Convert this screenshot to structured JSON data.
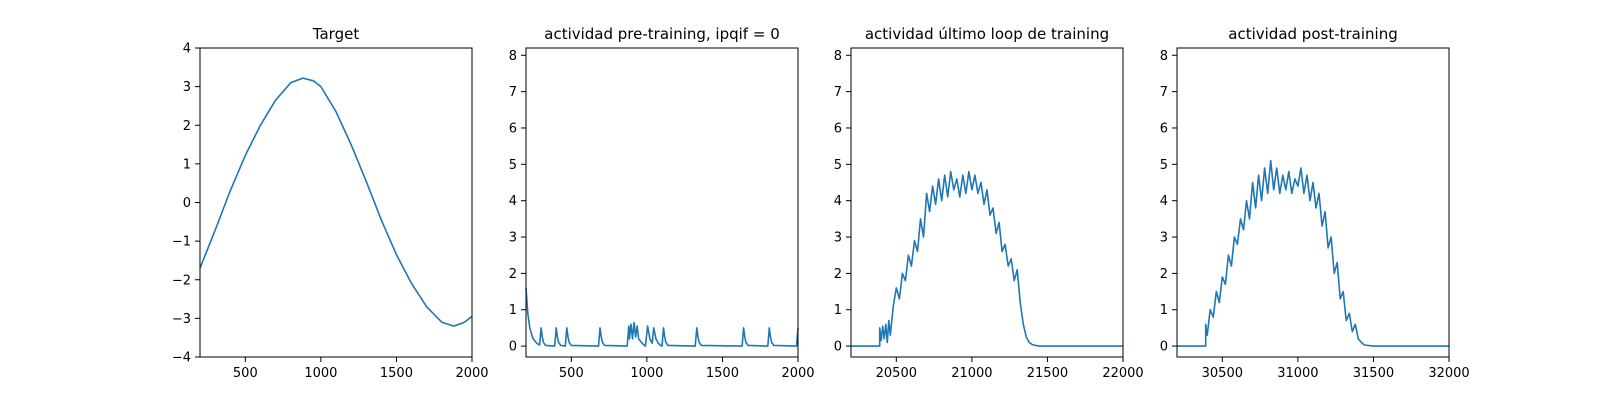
{
  "line_color": "#1f77b4",
  "chart_data": [
    {
      "type": "line",
      "title": "Target",
      "xlim": [
        200,
        2000
      ],
      "ylim": [
        -4,
        4
      ],
      "xticks": [
        500,
        1000,
        1500,
        2000
      ],
      "yticks": [
        -4,
        -3,
        -2,
        -1,
        0,
        1,
        2,
        3,
        4
      ],
      "series": [
        {
          "x": [
            200,
            300,
            400,
            500,
            600,
            700,
            800,
            880,
            950,
            1000,
            1100,
            1200,
            1300,
            1400,
            1500,
            1600,
            1700,
            1800,
            1880,
            1950,
            2000
          ],
          "y": [
            -1.7,
            -0.72,
            0.3,
            1.22,
            2.0,
            2.65,
            3.1,
            3.22,
            3.15,
            3.0,
            2.35,
            1.5,
            0.55,
            -0.45,
            -1.35,
            -2.1,
            -2.7,
            -3.1,
            -3.2,
            -3.1,
            -2.95
          ]
        }
      ]
    },
    {
      "type": "line",
      "title": "actividad pre-training, ipqif = 0",
      "xlim": [
        200,
        2000
      ],
      "ylim": [
        -0.3,
        8.2
      ],
      "xticks": [
        500,
        1000,
        1500,
        2000
      ],
      "yticks": [
        0,
        1,
        2,
        3,
        4,
        5,
        6,
        7,
        8
      ],
      "series": [
        {
          "x": [
            200,
            212,
            225,
            245,
            270,
            290,
            300,
            308,
            316,
            330,
            390,
            400,
            408,
            416,
            430,
            460,
            470,
            478,
            486,
            500,
            680,
            690,
            698,
            706,
            720,
            870,
            880,
            885,
            895,
            905,
            915,
            925,
            935,
            945,
            955,
            965,
            975,
            990,
            1005,
            1020,
            1035,
            1045,
            1060,
            1075,
            1090,
            1100,
            1110,
            1118,
            1126,
            1140,
            1320,
            1330,
            1338,
            1346,
            1360,
            1630,
            1640,
            1648,
            1656,
            1670,
            1800,
            1810,
            1818,
            1826,
            1840,
            1990,
            2000
          ],
          "y": [
            1.6,
            0.9,
            0.5,
            0.22,
            0.08,
            0.03,
            0.5,
            0.25,
            0.1,
            0.02,
            0.0,
            0.5,
            0.25,
            0.1,
            0.02,
            0.0,
            0.5,
            0.25,
            0.1,
            0.02,
            0.0,
            0.5,
            0.25,
            0.1,
            0.02,
            0.0,
            0.55,
            0.2,
            0.6,
            0.2,
            0.65,
            0.25,
            0.55,
            0.2,
            0.15,
            0.1,
            0.05,
            0.0,
            0.55,
            0.2,
            0.08,
            0.5,
            0.2,
            0.08,
            0.02,
            0.0,
            0.5,
            0.25,
            0.1,
            0.02,
            0.0,
            0.5,
            0.25,
            0.1,
            0.02,
            0.0,
            0.5,
            0.25,
            0.1,
            0.02,
            0.0,
            0.5,
            0.25,
            0.1,
            0.02,
            0.0,
            0.5
          ]
        }
      ]
    },
    {
      "type": "line",
      "title": "actividad último loop de training",
      "xlim": [
        20200,
        22000
      ],
      "ylim": [
        -0.3,
        8.2
      ],
      "xticks": [
        20500,
        21000,
        21500,
        22000
      ],
      "yticks": [
        0,
        1,
        2,
        3,
        4,
        5,
        6,
        7,
        8
      ],
      "series": [
        {
          "x": [
            20200,
            20390,
            20390,
            20400,
            20410,
            20420,
            20430,
            20440,
            20450,
            20460,
            20480,
            20500,
            20520,
            20540,
            20560,
            20580,
            20600,
            20620,
            20640,
            20660,
            20680,
            20700,
            20720,
            20740,
            20760,
            20780,
            20800,
            20820,
            20840,
            20860,
            20880,
            20900,
            20920,
            20940,
            20960,
            20980,
            21000,
            21020,
            21040,
            21060,
            21080,
            21100,
            21120,
            21140,
            21160,
            21180,
            21200,
            21220,
            21240,
            21260,
            21280,
            21300,
            21320,
            21340,
            21360,
            21380,
            21400,
            21420,
            21450,
            21500,
            22000
          ],
          "y": [
            0.0,
            0.0,
            0.5,
            0.15,
            0.55,
            0.2,
            0.6,
            0.1,
            0.7,
            0.3,
            1.1,
            1.6,
            1.3,
            2.0,
            1.8,
            2.5,
            2.2,
            2.9,
            2.6,
            3.5,
            3.0,
            4.2,
            3.7,
            4.4,
            3.9,
            4.6,
            4.0,
            4.7,
            4.1,
            4.8,
            4.3,
            4.6,
            4.1,
            4.7,
            4.2,
            4.8,
            4.3,
            4.7,
            4.2,
            4.5,
            3.9,
            4.3,
            3.6,
            3.8,
            3.1,
            3.4,
            2.6,
            2.8,
            2.2,
            2.4,
            1.8,
            2.1,
            1.2,
            0.6,
            0.25,
            0.1,
            0.04,
            0.02,
            0.0,
            0.0,
            0.0
          ]
        }
      ]
    },
    {
      "type": "line",
      "title": "actividad post-training",
      "xlim": [
        30200,
        32000
      ],
      "ylim": [
        -0.3,
        8.2
      ],
      "xticks": [
        30500,
        31000,
        31500,
        32000
      ],
      "yticks": [
        0,
        1,
        2,
        3,
        4,
        5,
        6,
        7,
        8
      ],
      "series": [
        {
          "x": [
            30200,
            30390,
            30390,
            30400,
            30420,
            30440,
            30460,
            30480,
            30500,
            30520,
            30540,
            30560,
            30580,
            30600,
            30620,
            30640,
            30660,
            30680,
            30700,
            30720,
            30740,
            30760,
            30780,
            30800,
            30820,
            30840,
            30860,
            30880,
            30900,
            30920,
            30940,
            30960,
            30980,
            31000,
            31020,
            31040,
            31060,
            31080,
            31100,
            31120,
            31140,
            31160,
            31180,
            31200,
            31220,
            31240,
            31260,
            31280,
            31300,
            31320,
            31340,
            31360,
            31380,
            31400,
            31420,
            31440,
            31500,
            32000
          ],
          "y": [
            0.0,
            0.0,
            0.6,
            0.3,
            1.0,
            0.8,
            1.5,
            1.2,
            1.9,
            1.7,
            2.5,
            2.2,
            3.0,
            2.8,
            3.5,
            3.2,
            4.0,
            3.5,
            4.5,
            3.8,
            4.7,
            4.0,
            4.9,
            4.2,
            5.1,
            4.3,
            4.9,
            4.2,
            4.7,
            4.3,
            4.8,
            4.2,
            4.6,
            4.4,
            4.9,
            4.2,
            4.7,
            4.0,
            4.5,
            3.8,
            4.2,
            3.3,
            3.7,
            2.7,
            3.0,
            2.0,
            2.3,
            1.3,
            1.5,
            0.7,
            0.9,
            0.4,
            0.6,
            0.2,
            0.1,
            0.03,
            0.0,
            0.0
          ]
        }
      ]
    }
  ]
}
